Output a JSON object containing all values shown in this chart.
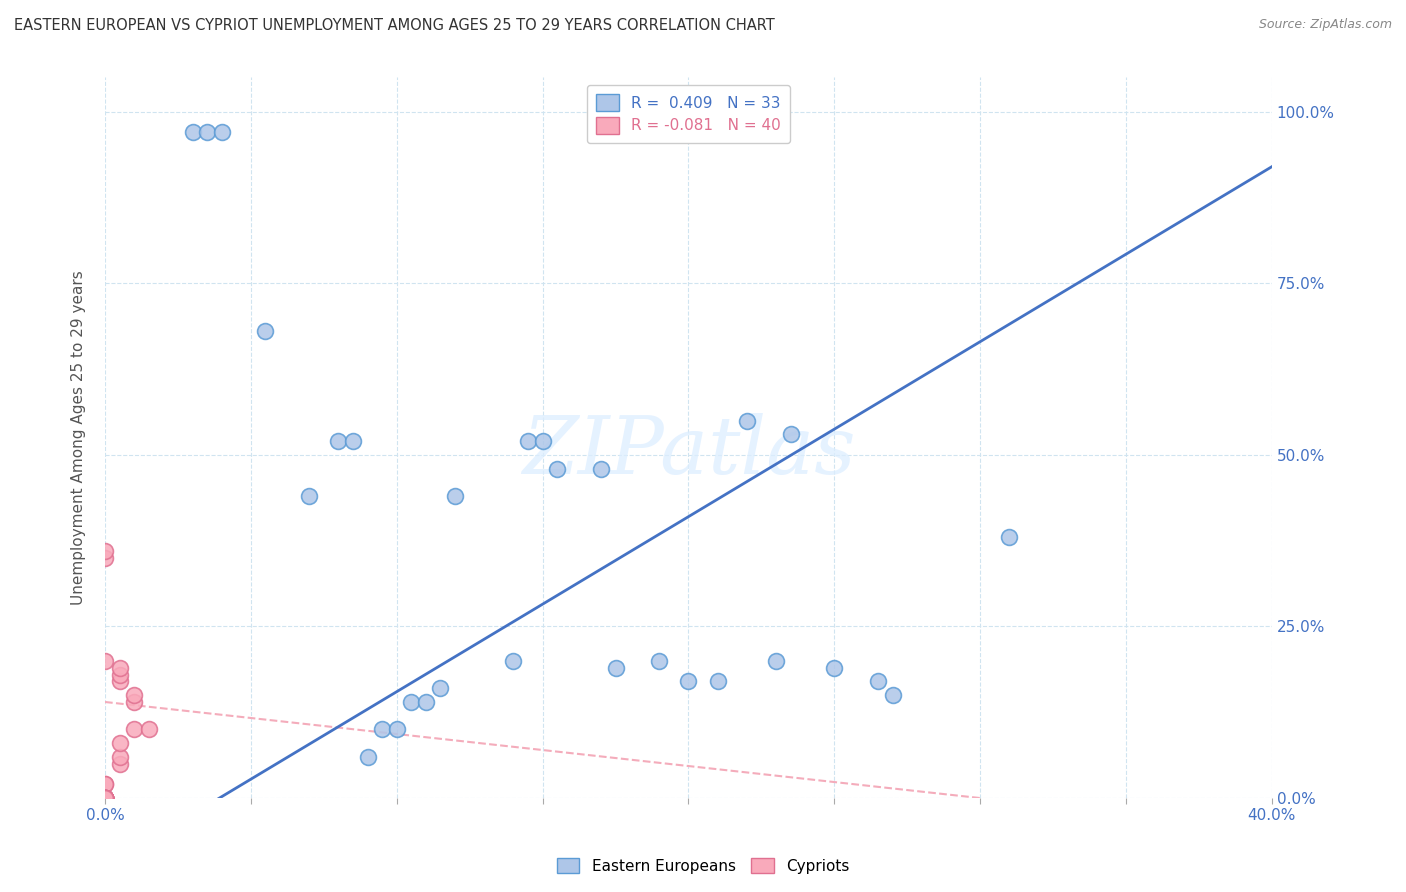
{
  "title": "EASTERN EUROPEAN VS CYPRIOT UNEMPLOYMENT AMONG AGES 25 TO 29 YEARS CORRELATION CHART",
  "source": "Source: ZipAtlas.com",
  "ylabel": "Unemployment Among Ages 25 to 29 years",
  "xlim": [
    0.0,
    40.0
  ],
  "ylim": [
    0.0,
    105.0
  ],
  "xtick_positions": [
    0,
    5,
    10,
    15,
    20,
    25,
    30,
    35,
    40
  ],
  "xticklabels": [
    "0.0%",
    "",
    "",
    "",
    "",
    "",
    "",
    "",
    "40.0%"
  ],
  "ytick_positions": [
    0,
    25,
    50,
    75,
    100
  ],
  "yticklabels_right": [
    "0.0%",
    "25.0%",
    "50.0%",
    "75.0%",
    "100.0%"
  ],
  "blue_scatter_x": [
    3.0,
    3.5,
    4.0,
    5.5,
    7.0,
    8.0,
    8.5,
    9.0,
    9.5,
    10.0,
    10.5,
    11.0,
    11.5,
    12.0,
    14.0,
    14.5,
    15.0,
    15.5,
    17.0,
    17.5,
    19.0,
    20.0,
    21.0,
    22.0,
    23.0,
    23.5,
    25.0,
    26.5,
    27.0,
    31.0
  ],
  "blue_scatter_y": [
    97.0,
    97.0,
    97.0,
    68.0,
    44.0,
    52.0,
    52.0,
    6.0,
    10.0,
    10.0,
    14.0,
    14.0,
    16.0,
    44.0,
    20.0,
    52.0,
    52.0,
    48.0,
    48.0,
    19.0,
    20.0,
    17.0,
    17.0,
    55.0,
    20.0,
    53.0,
    19.0,
    17.0,
    15.0,
    38.0
  ],
  "pink_scatter_x": [
    0.0,
    0.0,
    0.0,
    0.0,
    0.0,
    0.0,
    0.0,
    0.0,
    0.0,
    0.0,
    0.0,
    0.0,
    0.0,
    0.0,
    0.0,
    0.0,
    0.0,
    0.5,
    0.5,
    0.5,
    1.0,
    1.5,
    1.0,
    1.0,
    0.5,
    0.5,
    0.5,
    0.0,
    0.0,
    0.0,
    0.0,
    0.0,
    0.0,
    0.0,
    0.0,
    0.0,
    0.0,
    0.0,
    0.0,
    0.0
  ],
  "pink_scatter_y": [
    0.0,
    0.0,
    0.0,
    0.0,
    0.0,
    0.0,
    0.0,
    0.0,
    0.0,
    0.0,
    0.0,
    0.0,
    0.0,
    0.0,
    0.0,
    2.0,
    2.0,
    5.0,
    6.0,
    8.0,
    10.0,
    10.0,
    14.0,
    15.0,
    17.0,
    18.0,
    19.0,
    20.0,
    35.0,
    36.0,
    0.0,
    0.0,
    0.0,
    0.0,
    0.0,
    0.0,
    0.0,
    0.0,
    0.0,
    0.0
  ],
  "blue_line_x": [
    0.0,
    40.0
  ],
  "blue_line_y": [
    -10.0,
    92.0
  ],
  "pink_line_x": [
    0.0,
    30.0
  ],
  "pink_line_y": [
    14.0,
    0.0
  ],
  "blue_color": "#AEC6E8",
  "pink_color": "#F9AABB",
  "blue_edge_color": "#5B9BD5",
  "pink_edge_color": "#E07090",
  "blue_line_color": "#4472C4",
  "pink_line_color": "#F4ACBB",
  "marker_size": 130,
  "watermark": "ZIPatlas",
  "background_color": "#ffffff",
  "grid_color": "#D0E4F0",
  "tick_label_color": "#4472C4"
}
